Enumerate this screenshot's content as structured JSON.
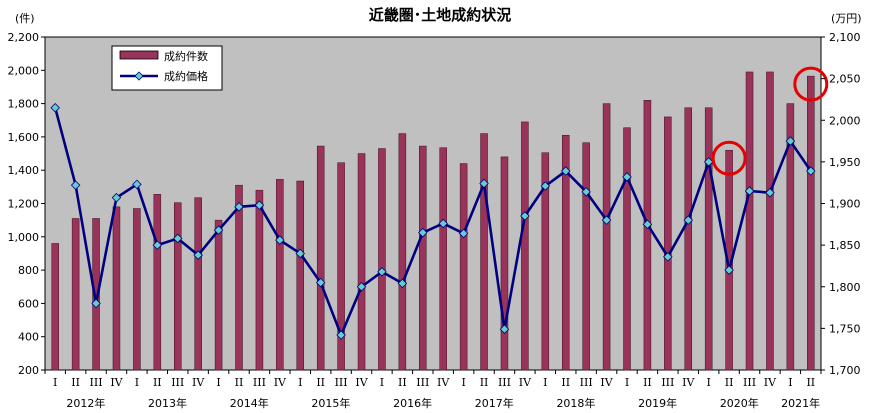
{
  "colors": {
    "plot_bg": "#c0c0c0",
    "bar": "#99335a",
    "line": "#000080",
    "marker": "#66cccc",
    "highlight": "#e60000"
  },
  "chart_data": {
    "type": "bar",
    "title": "近畿圏･土地成約状況",
    "left_unit": "(件)",
    "right_unit": "(万円)",
    "quarter_labels": [
      "I",
      "II",
      "III",
      "IV",
      "I",
      "II",
      "III",
      "IV",
      "I",
      "II",
      "III",
      "IV",
      "I",
      "II",
      "III",
      "IV",
      "I",
      "II",
      "III",
      "IV",
      "I",
      "II",
      "III",
      "IV",
      "I",
      "II",
      "III",
      "IV",
      "I",
      "II",
      "III",
      "IV",
      "I",
      "II",
      "III",
      "IV",
      "I",
      "II"
    ],
    "years": [
      {
        "label": "2012年",
        "start": 0,
        "end": 3
      },
      {
        "label": "2013年",
        "start": 4,
        "end": 7
      },
      {
        "label": "2014年",
        "start": 8,
        "end": 11
      },
      {
        "label": "2015年",
        "start": 12,
        "end": 15
      },
      {
        "label": "2016年",
        "start": 16,
        "end": 19
      },
      {
        "label": "2017年",
        "start": 20,
        "end": 23
      },
      {
        "label": "2018年",
        "start": 24,
        "end": 27
      },
      {
        "label": "2019年",
        "start": 28,
        "end": 31
      },
      {
        "label": "2020年",
        "start": 32,
        "end": 35
      },
      {
        "label": "2021年",
        "start": 36,
        "end": 37
      }
    ],
    "ylim": [
      200,
      2200
    ],
    "y_ticks": [
      "200",
      "400",
      "600",
      "800",
      "1,000",
      "1,200",
      "1,400",
      "1,600",
      "1,800",
      "2,000",
      "2,200"
    ],
    "y2lim": [
      1700,
      2100
    ],
    "y2_ticks": [
      "1,700",
      "1,750",
      "1,800",
      "1,850",
      "1,900",
      "1,950",
      "2,000",
      "2,050",
      "2,100"
    ],
    "series": [
      {
        "name": "成約件数",
        "kind": "bar",
        "axis": "left",
        "values": [
          960,
          1110,
          1110,
          1180,
          1170,
          1255,
          1205,
          1235,
          1100,
          1310,
          1280,
          1345,
          1335,
          1545,
          1445,
          1500,
          1530,
          1620,
          1545,
          1535,
          1440,
          1620,
          1480,
          1690,
          1505,
          1610,
          1565,
          1800,
          1655,
          1820,
          1720,
          1775,
          1775,
          1520,
          1990,
          1990,
          1800,
          1965
        ]
      },
      {
        "name": "成約価格",
        "kind": "line",
        "axis": "right",
        "values": [
          2015,
          1922,
          1780,
          1907,
          1923,
          1850,
          1858,
          1838,
          1868,
          1896,
          1898,
          1856,
          1840,
          1805,
          1742,
          1800,
          1818,
          1804,
          1865,
          1876,
          1864,
          1924,
          1749,
          1885,
          1921,
          1939,
          1914,
          1880,
          1932,
          1875,
          1836,
          1880,
          1950,
          1820,
          1915,
          1913,
          1975,
          1939
        ]
      }
    ],
    "highlights": [
      33,
      37
    ],
    "grid": false,
    "legend_position": "top-left"
  }
}
